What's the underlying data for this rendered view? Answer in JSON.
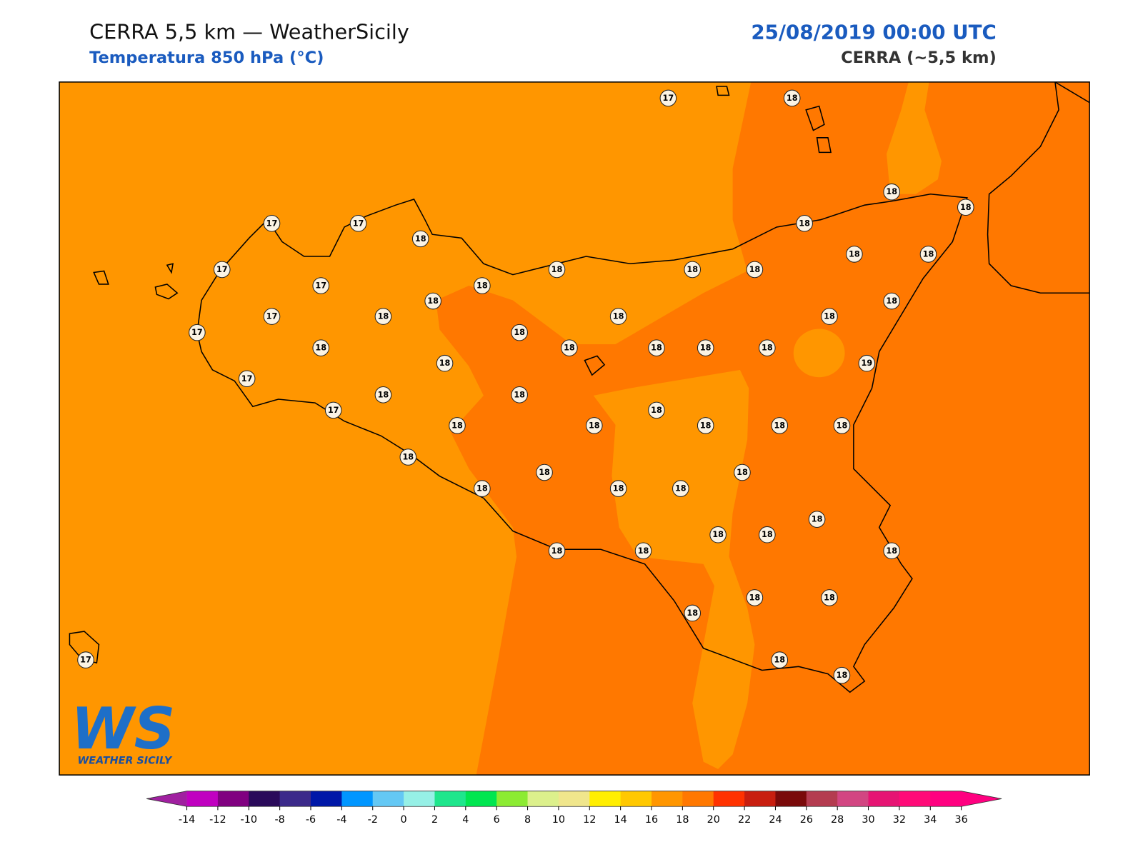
{
  "header": {
    "title": "CERRA 5,5 km — WeatherSicily",
    "subtitle": "Temperatura 850 hPa (°C)",
    "datetime": "25/08/2019 00:00 UTC",
    "model": "CERRA (~5,5 km)"
  },
  "map": {
    "stations": [
      17,
      18,
      18,
      18,
      18,
      17,
      17,
      18,
      17,
      18,
      18,
      18,
      18,
      18,
      17,
      18,
      18,
      18,
      17,
      18,
      18,
      18,
      17,
      18,
      18,
      18,
      18,
      18,
      18,
      18,
      19,
      17,
      18,
      18,
      17,
      18,
      18,
      18,
      18,
      18,
      18,
      18,
      18,
      18,
      18,
      18,
      18,
      18,
      18,
      18,
      18,
      18,
      18,
      18,
      18,
      18,
      18,
      18,
      17
    ]
  },
  "colorbar": {
    "ticks": [
      -14,
      -12,
      -10,
      -8,
      -6,
      -4,
      -2,
      0,
      2,
      4,
      6,
      8,
      10,
      12,
      14,
      16,
      18,
      20,
      22,
      24,
      26,
      28,
      30,
      32,
      34,
      36
    ],
    "colors": [
      "#c000c0",
      "#800080",
      "#2a0a5a",
      "#3b2a8a",
      "#0018a8",
      "#0096ff",
      "#64c8f4",
      "#96f0e6",
      "#1ee68c",
      "#00e650",
      "#8ceb32",
      "#dcf08c",
      "#f0e68c",
      "#ffee00",
      "#ffc800",
      "#ff9600",
      "#ff7800",
      "#ff3200",
      "#c81e0f",
      "#7a0a0a",
      "#b43c50",
      "#d24682",
      "#e61473",
      "#ff0a78",
      "#ff0080"
    ],
    "extend_colors": [
      "#a020a0",
      "#ff0080"
    ]
  },
  "logo": {
    "mark": "WS",
    "text": "WEATHER SICILY"
  }
}
